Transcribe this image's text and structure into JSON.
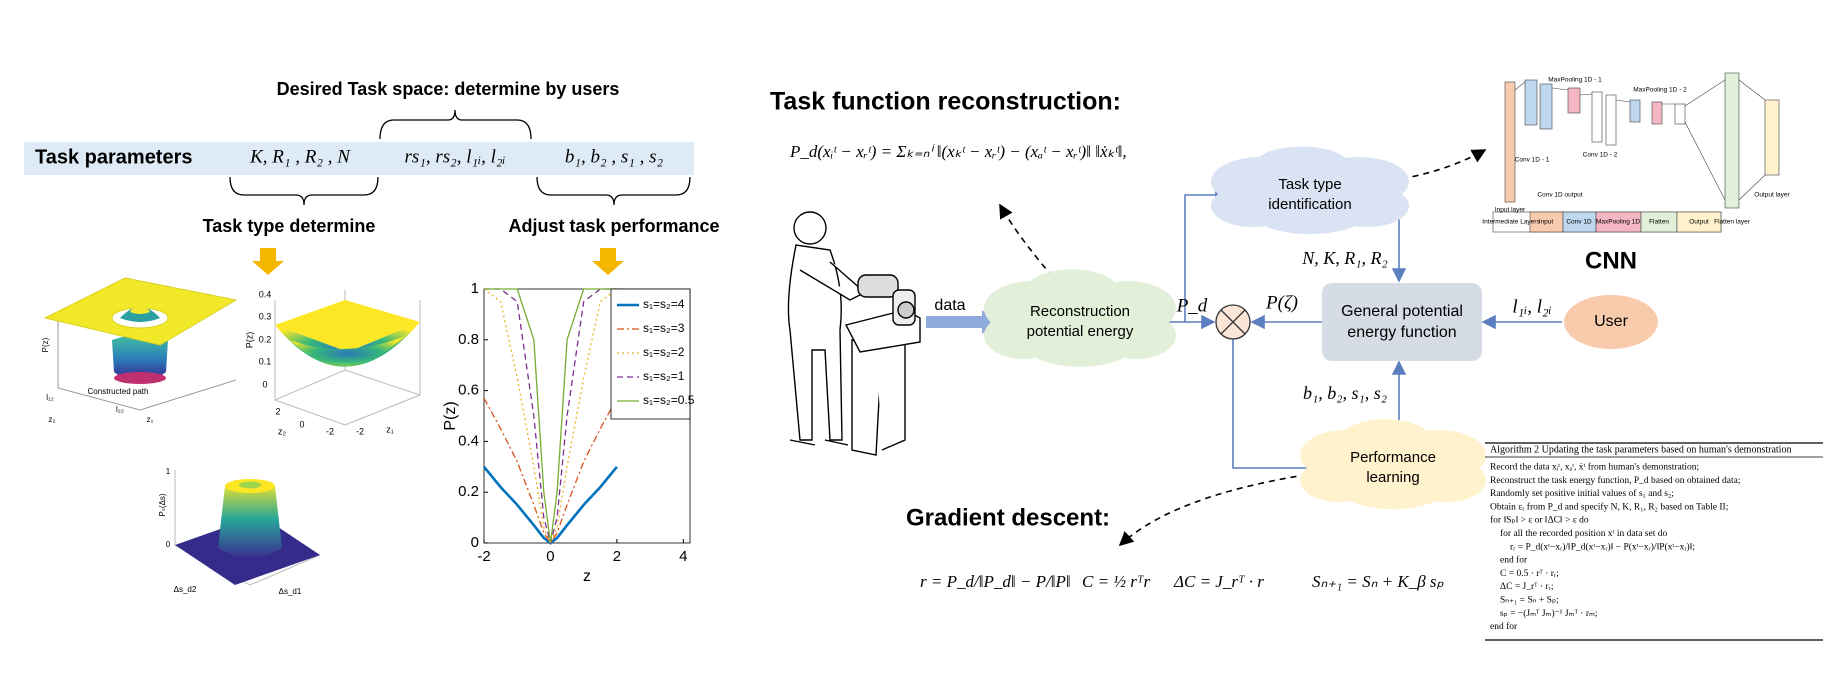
{
  "left": {
    "desired_label": "Desired Task space:  determine by users",
    "task_parameters": {
      "label": "Task parameters",
      "groups": [
        "K, R₁ , R₂ , N",
        "rs₁, rs₂, l₁ᵢ, l₂ᵢ",
        "b₁, b₂ , s₁ , s₂"
      ]
    },
    "task_type_label": "Task type determine",
    "adjust_label": "Adjust task performance",
    "surface_1_labels": [
      "P(z)",
      "Constructed path",
      "l₁₂",
      "l₂₂",
      "z₂",
      "z₁"
    ],
    "surface_2_labels": [
      "0.4",
      "0.3",
      "0.2",
      "0.1",
      "0",
      "P(z)",
      "2",
      "0",
      "-2",
      "-2",
      "z₂",
      "z₁"
    ],
    "surface_3_labels": [
      "Pₛ(Δs)",
      "1",
      "0",
      "Δs_d2",
      "Δs_d1"
    ]
  },
  "chart_data": {
    "type": "line",
    "ylabel": "P(z)",
    "xlabel": "z",
    "x": [
      -2,
      -1.5,
      -1,
      -0.5,
      -0.2,
      0,
      0.2,
      0.5,
      1,
      1.5,
      2
    ],
    "xlim": [
      -2,
      4.2
    ],
    "ylim": [
      0,
      1
    ],
    "xticks": [
      -2,
      0,
      2,
      4
    ],
    "yticks": [
      0,
      0.2,
      0.4,
      0.6,
      0.8,
      1
    ],
    "series": [
      {
        "name": "s₁=s₂=4",
        "color": "#0072bd",
        "dash": "solid",
        "width": 2.6,
        "values": [
          0.3,
          0.22,
          0.15,
          0.07,
          0.02,
          0,
          0.02,
          0.07,
          0.15,
          0.22,
          0.3
        ]
      },
      {
        "name": "s₁=s₂=3",
        "color": "#d95319",
        "dash": "dashdot",
        "width": 1.3,
        "values": [
          0.57,
          0.45,
          0.32,
          0.15,
          0.04,
          0,
          0.04,
          0.15,
          0.32,
          0.45,
          0.57
        ]
      },
      {
        "name": "s₁=s₂=2",
        "color": "#edb120",
        "dash": "dotted",
        "width": 1.3,
        "values": [
          1,
          0.95,
          0.65,
          0.3,
          0.06,
          0,
          0.06,
          0.3,
          0.65,
          0.95,
          1
        ]
      },
      {
        "name": "s₁=s₂=1",
        "color": "#7e2f8e",
        "dash": "dashed",
        "width": 1.3,
        "values": [
          1,
          1,
          0.95,
          0.5,
          0.1,
          0,
          0.1,
          0.5,
          0.95,
          1,
          1
        ]
      },
      {
        "name": "s₁=s₂=0.5",
        "color": "#77ac30",
        "dash": "solid",
        "width": 1.3,
        "values": [
          1,
          1,
          1,
          0.8,
          0.2,
          0,
          0.2,
          0.8,
          1,
          1,
          1
        ]
      }
    ]
  },
  "right": {
    "reconstruction_title": "Task function reconstruction:",
    "reconstruction_formula": "P_d(xᵢᵗ − xᵣᵗ) = Σₖ₌ₙⁱ ‖(xₖᵗ − xᵣᵗ) − (xₐᵗ − xᵣᵗ)‖ ‖ẋₖᵗ‖,",
    "data_label": "data",
    "reconstruction_node": [
      "Reconstruction",
      "potential energy"
    ],
    "pd_label": "P_d",
    "pzeta_label": "P(ζ)",
    "task_type_node": [
      "Task type",
      "identification"
    ],
    "general_node": [
      "General potential",
      "energy function"
    ],
    "user_node": "User",
    "user_params": "l₁ᵢ, l₂ᵢ",
    "type_params": "N, K, R₁, R₂",
    "performance_params": "b₁, b₂, s₁, s₂",
    "performance_node": [
      "Performance",
      "learning"
    ],
    "gradient_title": "Gradient descent:",
    "gradient_formulas": [
      "r = P_d/‖P_d‖ − P/‖P‖",
      "C = ½ rᵀr",
      "ΔC = J_rᵀ · r",
      "Sₙ₊₁ = Sₙ + K_β sₚ"
    ],
    "cnn_title": "CNN",
    "cnn_layers": [
      "Input layer",
      "Conv 1D - 1",
      "MaxPooling 1D - 1",
      "Conv 1D output",
      "Conv 1D - 2",
      "MaxPooling 1D - 2",
      "Flatten layer",
      "Output layer"
    ],
    "cnn_legend": [
      "Intermediate Layers",
      "Input",
      "Conv 1D",
      "MaxPooling 1D",
      "Flatten",
      "Output"
    ],
    "algorithm": [
      "Algorithm 2 Updating the task parameters based on human's demonstration",
      "Record the data xᵢᵗ, xₐᵗ, ẋᵗ from human's demonstration;",
      "Reconstruct the task energy function, P_d based on obtained data;",
      "Randomly set positive initial values of s₁ and s₂;",
      "Obtain εᵣ from P_d and specify N, K, R₁, R₂ based on Table II;",
      "for ‖Sₚ‖ > ε or ‖ΔC‖ > ε do",
      "for all the recorded position xᵗ in data set do",
      "rᵣ = P_d(xᵗ−xᵣ)/‖P_d(xᵗ−xᵣ)‖ − P(xᵗ−xᵣ)/‖P(xᵗ−xᵣ)‖;",
      "end for",
      "C = 0.5 · rᵀ · rᵣ;",
      "ΔC = J_rᵀ · rᵣ;",
      "Sₙ₊₁ = Sₙ + Sₚ;",
      "sₚ = −(Jₘᵀ Jₘ)⁻¹ Jₘᵀ · rₘ;",
      "end for"
    ]
  }
}
